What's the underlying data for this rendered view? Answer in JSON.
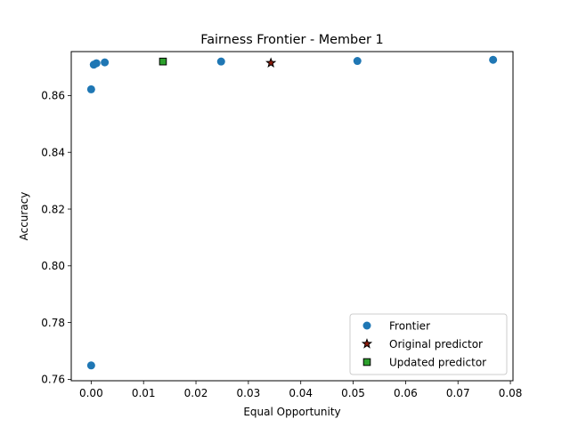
{
  "chart_data": {
    "type": "scatter",
    "title": "Fairness Frontier - Member 1",
    "xlabel": "Equal Opportunity",
    "ylabel": "Accuracy",
    "xlim": [
      -0.0038,
      0.0805
    ],
    "ylim": [
      0.7595,
      0.8755
    ],
    "xticks": [
      0.0,
      0.01,
      0.02,
      0.03,
      0.04,
      0.05,
      0.06,
      0.07,
      0.08
    ],
    "xtick_labels": [
      "0.00",
      "0.01",
      "0.02",
      "0.03",
      "0.04",
      "0.05",
      "0.06",
      "0.07",
      "0.08"
    ],
    "yticks": [
      0.76,
      0.78,
      0.8,
      0.82,
      0.84,
      0.86
    ],
    "ytick_labels": [
      "0.76",
      "0.78",
      "0.80",
      "0.82",
      "0.84",
      "0.86"
    ],
    "grid": false,
    "legend_position": "lower right",
    "series": [
      {
        "name": "Frontier",
        "marker": "circle",
        "color": "#1f77b4",
        "x": [
          0.0,
          0.0,
          0.0005,
          0.001,
          0.0026,
          0.0248,
          0.0508,
          0.0767
        ],
        "y": [
          0.7649,
          0.8622,
          0.8709,
          0.8714,
          0.8717,
          0.872,
          0.8722,
          0.8726
        ]
      },
      {
        "name": "Original predictor",
        "marker": "star",
        "color": "#8c1a0a",
        "x": [
          0.0343
        ],
        "y": [
          0.8715
        ]
      },
      {
        "name": "Updated predictor",
        "marker": "square",
        "color": "#2ca02c",
        "x": [
          0.0137
        ],
        "y": [
          0.872
        ]
      }
    ]
  }
}
